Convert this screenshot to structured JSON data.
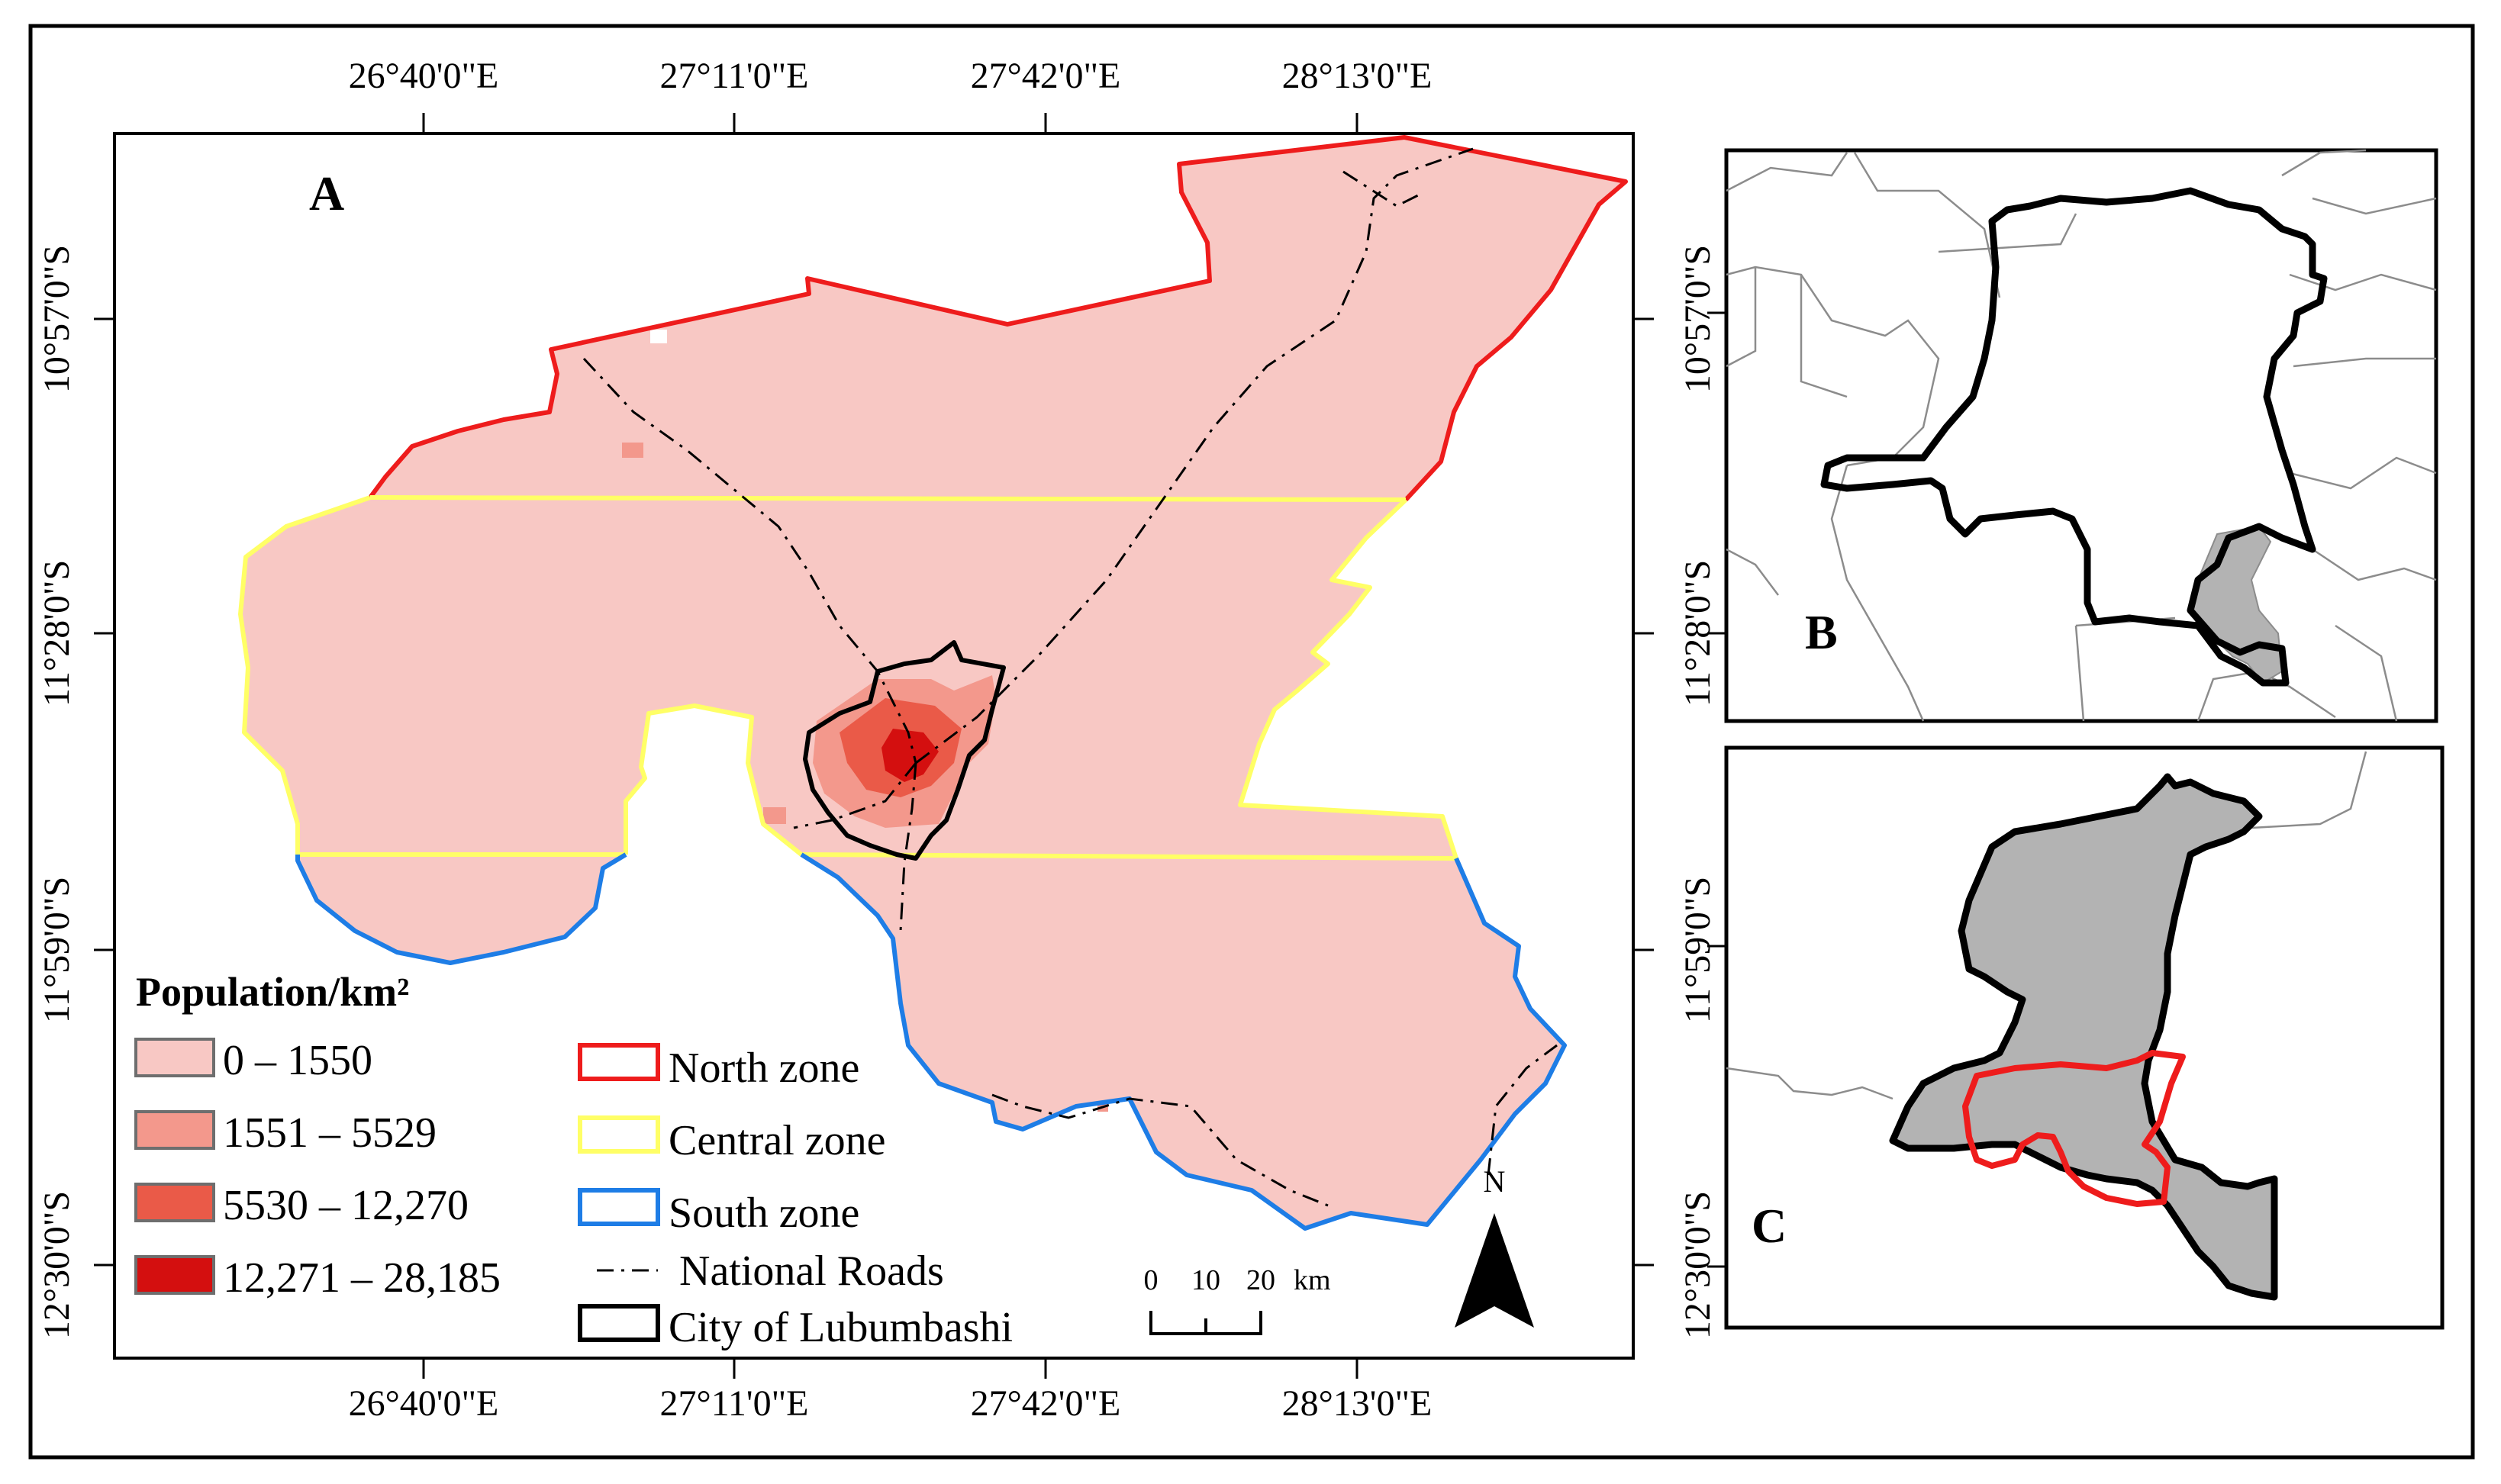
{
  "panels": {
    "main": {
      "letter": "A"
    },
    "country": {
      "letter": "B"
    },
    "province": {
      "letter": "C"
    }
  },
  "longitude_labels": [
    "26°40'0\"E",
    "27°11'0\"E",
    "27°42'0\"E",
    "28°13'0\"E"
  ],
  "latitude_labels": [
    "10°57'0\"S",
    "11°28'0\"S",
    "11°59'0\"S",
    "12°30'0\"S"
  ],
  "legend": {
    "title": "Population/km²",
    "classes": [
      {
        "label": "0 – 1550",
        "color": "#f8c8c4"
      },
      {
        "label": "1551 – 5529",
        "color": "#f3988c"
      },
      {
        "label": "5530 – 12,270",
        "color": "#ea5a48"
      },
      {
        "label": "12,271 – 28,185",
        "color": "#d40f0f"
      }
    ],
    "zones": [
      {
        "label": "North zone",
        "color": "#ee1c1c"
      },
      {
        "label": "Central zone",
        "color": "#ffff66"
      },
      {
        "label": "South zone",
        "color": "#1e7de6"
      }
    ],
    "roads_label": "National Roads",
    "city_label": "City of Lubumbashi"
  },
  "scale_bar": {
    "ticks": [
      "0",
      "10",
      "20"
    ],
    "unit": "km"
  },
  "north_arrow": {
    "label": "N"
  },
  "colors": {
    "territory_fill": "#f8c8c4",
    "inset_fill": "#b3b3b3",
    "boundary": "#000000",
    "admin_lines": "#8c8c8c"
  }
}
